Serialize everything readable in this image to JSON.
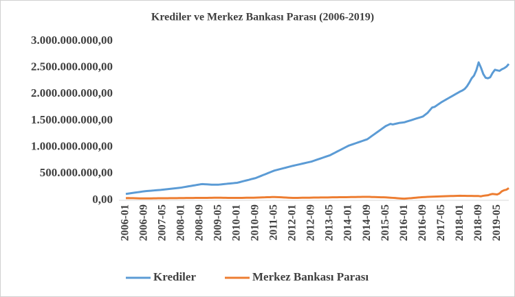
{
  "chart_data": {
    "type": "line",
    "title": "Krediler ve Merkez Bankası Parası (2006-2019)",
    "categories": [
      "2006-01",
      null,
      null,
      null,
      null,
      null,
      null,
      null,
      "2006-09",
      null,
      null,
      null,
      null,
      null,
      null,
      null,
      "2007-05",
      null,
      null,
      null,
      null,
      null,
      null,
      null,
      "2008-01",
      null,
      null,
      null,
      null,
      null,
      null,
      null,
      "2008-09",
      null,
      null,
      null,
      null,
      null,
      null,
      null,
      "2009-05",
      null,
      null,
      null,
      null,
      null,
      null,
      null,
      "2010-01",
      null,
      null,
      null,
      null,
      null,
      null,
      null,
      "2010-09",
      null,
      null,
      null,
      null,
      null,
      null,
      null,
      "2011-05",
      null,
      null,
      null,
      null,
      null,
      null,
      null,
      "2012-01",
      null,
      null,
      null,
      null,
      null,
      null,
      null,
      "2012-09",
      null,
      null,
      null,
      null,
      null,
      null,
      null,
      "2013-05",
      null,
      null,
      null,
      null,
      null,
      null,
      null,
      "2014-01",
      null,
      null,
      null,
      null,
      null,
      null,
      null,
      "2014-09",
      null,
      null,
      null,
      null,
      null,
      null,
      null,
      "2015-05",
      null,
      null,
      null,
      null,
      null,
      null,
      null,
      "2016-01",
      null,
      null,
      null,
      null,
      null,
      null,
      null,
      "2016-09",
      null,
      null,
      null,
      null,
      null,
      null,
      null,
      "2017-05",
      null,
      null,
      null,
      null,
      null,
      null,
      null,
      "2018-01",
      null,
      null,
      null,
      null,
      null,
      null,
      null,
      "2018-09",
      null,
      null,
      null,
      null,
      null,
      null,
      null,
      "2019-05",
      null,
      null,
      null,
      null,
      null
    ],
    "series": [
      {
        "name": "Krediler",
        "color": "#5b9bd5",
        "values": [
          120000000,
          126000000,
          132000000,
          139000000,
          145000000,
          151000000,
          157000000,
          164000000,
          170000000,
          174000000,
          178000000,
          181000000,
          185000000,
          189000000,
          193000000,
          196000000,
          200000000,
          205000000,
          210000000,
          215000000,
          220000000,
          225000000,
          230000000,
          235000000,
          240000000,
          248000000,
          255000000,
          263000000,
          270000000,
          278000000,
          285000000,
          293000000,
          300000000,
          305000000,
          303000000,
          300000000,
          297000000,
          295000000,
          294000000,
          295000000,
          295000000,
          299000000,
          304000000,
          308000000,
          313000000,
          317000000,
          321000000,
          326000000,
          330000000,
          341000000,
          353000000,
          364000000,
          375000000,
          386000000,
          398000000,
          409000000,
          420000000,
          438000000,
          455000000,
          473000000,
          490000000,
          508000000,
          525000000,
          543000000,
          560000000,
          571000000,
          583000000,
          594000000,
          605000000,
          616000000,
          628000000,
          639000000,
          650000000,
          660000000,
          670000000,
          680000000,
          690000000,
          700000000,
          710000000,
          720000000,
          730000000,
          745000000,
          760000000,
          775000000,
          790000000,
          805000000,
          820000000,
          835000000,
          850000000,
          873000000,
          895000000,
          918000000,
          940000000,
          963000000,
          985000000,
          1008000000,
          1030000000,
          1045000000,
          1060000000,
          1075000000,
          1090000000,
          1105000000,
          1120000000,
          1135000000,
          1150000000,
          1181000000,
          1213000000,
          1244000000,
          1275000000,
          1306000000,
          1338000000,
          1369000000,
          1400000000,
          1420000000,
          1440000000,
          1430000000,
          1440000000,
          1450000000,
          1460000000,
          1465000000,
          1470000000,
          1484000000,
          1498000000,
          1511000000,
          1525000000,
          1539000000,
          1553000000,
          1566000000,
          1580000000,
          1614000000,
          1648000000,
          1700000000,
          1750000000,
          1760000000,
          1790000000,
          1820000000,
          1850000000,
          1875000000,
          1900000000,
          1925000000,
          1950000000,
          1975000000,
          2000000000,
          2025000000,
          2050000000,
          2070000000,
          2100000000,
          2150000000,
          2220000000,
          2300000000,
          2350000000,
          2450000000,
          2600000000,
          2500000000,
          2380000000,
          2310000000,
          2300000000,
          2320000000,
          2400000000,
          2460000000,
          2450000000,
          2440000000,
          2470000000,
          2490000000,
          2520000000,
          2570000000
        ]
      },
      {
        "name": "Merkez Bankası Parası",
        "color": "#ed7d31",
        "values": [
          40000000,
          42000000,
          41000000,
          40000000,
          38000000,
          37000000,
          36000000,
          35000000,
          35000000,
          35000000,
          36000000,
          36000000,
          37000000,
          37000000,
          38000000,
          38000000,
          38000000,
          39000000,
          39000000,
          40000000,
          40000000,
          41000000,
          41000000,
          42000000,
          42000000,
          42000000,
          43000000,
          43000000,
          44000000,
          44000000,
          45000000,
          45000000,
          45000000,
          45000000,
          46000000,
          46000000,
          47000000,
          47000000,
          48000000,
          48000000,
          48000000,
          48000000,
          47000000,
          47000000,
          46000000,
          46000000,
          45000000,
          45000000,
          45000000,
          46000000,
          46000000,
          47000000,
          48000000,
          48000000,
          49000000,
          49000000,
          50000000,
          52000000,
          53000000,
          55000000,
          56000000,
          58000000,
          59000000,
          61000000,
          62000000,
          60000000,
          58000000,
          56000000,
          53000000,
          51000000,
          49000000,
          47000000,
          45000000,
          46000000,
          46000000,
          47000000,
          48000000,
          48000000,
          49000000,
          49000000,
          50000000,
          51000000,
          51000000,
          52000000,
          53000000,
          53000000,
          54000000,
          54000000,
          55000000,
          56000000,
          56000000,
          57000000,
          58000000,
          58000000,
          59000000,
          59000000,
          60000000,
          61000000,
          61000000,
          62000000,
          63000000,
          63000000,
          64000000,
          64000000,
          65000000,
          64000000,
          62000000,
          61000000,
          60000000,
          59000000,
          57000000,
          56000000,
          55000000,
          52000000,
          49000000,
          46000000,
          43000000,
          39000000,
          36000000,
          33000000,
          30000000,
          34000000,
          38000000,
          41000000,
          45000000,
          49000000,
          53000000,
          56000000,
          60000000,
          62000000,
          64000000,
          66000000,
          68000000,
          69000000,
          71000000,
          73000000,
          75000000,
          76000000,
          78000000,
          79000000,
          80000000,
          81000000,
          83000000,
          84000000,
          85000000,
          84000000,
          84000000,
          83000000,
          82000000,
          82000000,
          81000000,
          81000000,
          80000000,
          75000000,
          85000000,
          90000000,
          95000000,
          110000000,
          120000000,
          115000000,
          110000000,
          130000000,
          170000000,
          190000000,
          200000000,
          230000000
        ]
      }
    ],
    "ylim": [
      0,
      3000000000
    ],
    "yticks": [
      {
        "value": 0,
        "label": "0,00"
      },
      {
        "value": 500000000,
        "label": "500.000.000,00"
      },
      {
        "value": 1000000000,
        "label": "1.000.000.000,00"
      },
      {
        "value": 1500000000,
        "label": "1.500.000.000,00"
      },
      {
        "value": 2000000000,
        "label": "2.000.000.000,00"
      },
      {
        "value": 2500000000,
        "label": "2.500.000.000,00"
      },
      {
        "value": 3000000000,
        "label": "3.000.000.000,00"
      }
    ],
    "grid": false,
    "legend": "bottom"
  }
}
